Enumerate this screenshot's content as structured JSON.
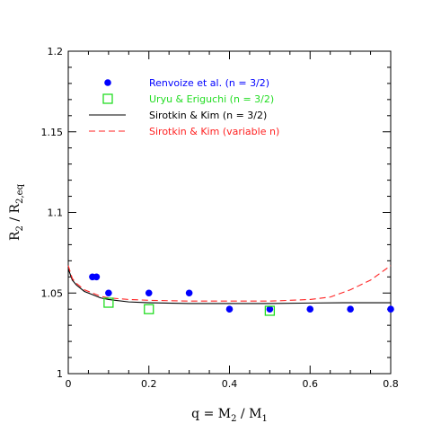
{
  "chart_data": {
    "type": "scatter",
    "xlabel": {
      "main": "q  =  M",
      "sub1": "2",
      "mid": " / M",
      "sub2": "1"
    },
    "ylabel": {
      "main": "R",
      "sub1": "2",
      "mid": " / R",
      "sub2": "2,eq"
    },
    "xlim": [
      0,
      0.8
    ],
    "ylim": [
      1.0,
      1.2
    ],
    "x_ticks": [
      "0",
      "0.2",
      "0.4",
      "0.6",
      "0.8"
    ],
    "y_ticks": [
      "1",
      "1.05",
      "1.1",
      "1.15",
      "1.2"
    ],
    "legend_position": "top-left",
    "series": [
      {
        "name": "Renvoize et al. (n = 3/2)",
        "kind": "points",
        "marker": "filled-circle",
        "color": "#0000ff",
        "x": [
          0.06,
          0.07,
          0.1,
          0.2,
          0.3,
          0.4,
          0.5,
          0.6,
          0.7,
          0.8
        ],
        "y": [
          1.06,
          1.06,
          1.05,
          1.05,
          1.05,
          1.04,
          1.04,
          1.04,
          1.04,
          1.04
        ]
      },
      {
        "name": "Uryu & Eriguchi (n = 3/2)",
        "kind": "points",
        "marker": "open-square",
        "color": "#22dd22",
        "x": [
          0.1,
          0.2,
          0.5
        ],
        "y": [
          1.044,
          1.04,
          1.039
        ]
      },
      {
        "name": "Sirotkin & Kim (n = 3/2)",
        "kind": "line",
        "style": "solid",
        "color": "#000000",
        "x": [
          0.0,
          0.01,
          0.02,
          0.04,
          0.06,
          0.08,
          0.1,
          0.15,
          0.2,
          0.3,
          0.4,
          0.5,
          0.6,
          0.7,
          0.8
        ],
        "y": [
          1.065,
          1.058,
          1.055,
          1.051,
          1.049,
          1.047,
          1.046,
          1.0445,
          1.044,
          1.0435,
          1.0435,
          1.0435,
          1.0438,
          1.044,
          1.044
        ]
      },
      {
        "name": "Sirotkin & Kim (variable n)",
        "kind": "line",
        "style": "dashed",
        "color": "#ff2222",
        "x": [
          0.0,
          0.01,
          0.02,
          0.04,
          0.06,
          0.08,
          0.1,
          0.15,
          0.2,
          0.3,
          0.4,
          0.5,
          0.55,
          0.6,
          0.65,
          0.7,
          0.75,
          0.8
        ],
        "y": [
          1.067,
          1.059,
          1.056,
          1.052,
          1.05,
          1.048,
          1.047,
          1.046,
          1.0455,
          1.045,
          1.045,
          1.045,
          1.0455,
          1.046,
          1.0475,
          1.052,
          1.058,
          1.067
        ]
      }
    ]
  }
}
